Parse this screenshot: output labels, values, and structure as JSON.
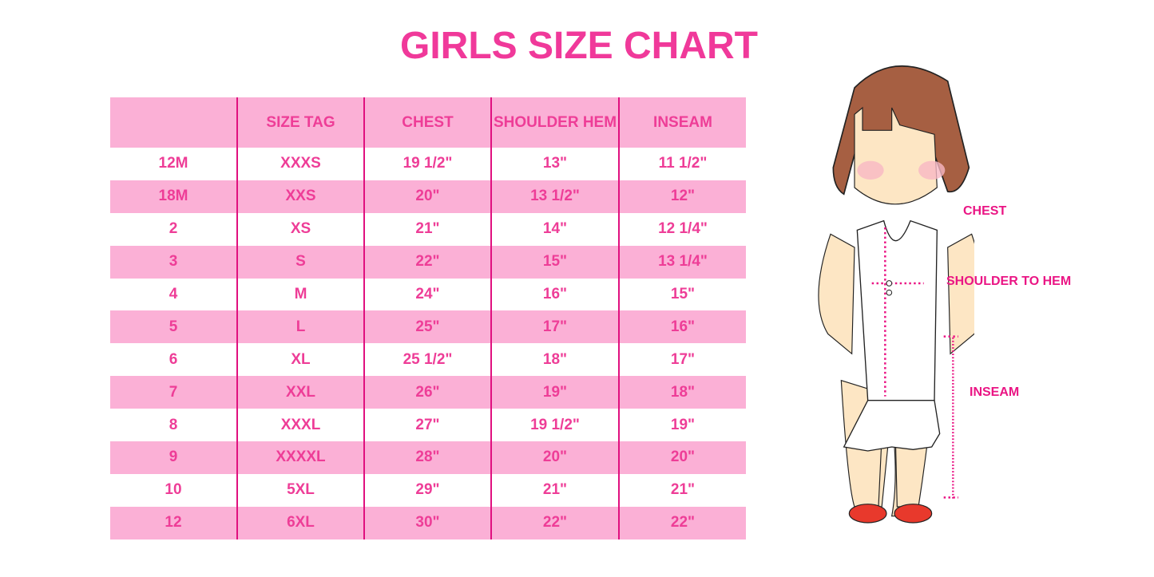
{
  "title": "GIRLS SIZE CHART",
  "table": {
    "headers": [
      "",
      "SIZE TAG",
      "CHEST",
      "SHOULDER HEM",
      "INSEAM"
    ],
    "rows": [
      [
        "12M",
        "XXXS",
        "19 1/2\"",
        "13\"",
        "11 1/2\""
      ],
      [
        "18M",
        "XXS",
        "20\"",
        "13 1/2\"",
        "12\""
      ],
      [
        "2",
        "XS",
        "21\"",
        "14\"",
        "12 1/4\""
      ],
      [
        "3",
        "S",
        "22\"",
        "15\"",
        "13 1/4\""
      ],
      [
        "4",
        "M",
        "24\"",
        "16\"",
        "15\""
      ],
      [
        "5",
        "L",
        "25\"",
        "17\"",
        "16\""
      ],
      [
        "6",
        "XL",
        "25 1/2\"",
        "18\"",
        "17\""
      ],
      [
        "7",
        "XXL",
        "26\"",
        "19\"",
        "18\""
      ],
      [
        "8",
        "XXXL",
        "27\"",
        "19 1/2\"",
        "19\""
      ],
      [
        "9",
        "XXXXL",
        "28\"",
        "20\"",
        "20\""
      ],
      [
        "10",
        "5XL",
        "29\"",
        "21\"",
        "21\""
      ],
      [
        "12",
        "6XL",
        "30\"",
        "22\"",
        "22\""
      ]
    ]
  },
  "diagram": {
    "labels": {
      "chest": "CHEST",
      "shoulder_to_hem": "SHOULDER TO HEM",
      "inseam": "INSEAM"
    }
  },
  "colors": {
    "accent": "#ee3d97",
    "row_pink": "#fbb0d6",
    "divider": "#e0107f"
  }
}
